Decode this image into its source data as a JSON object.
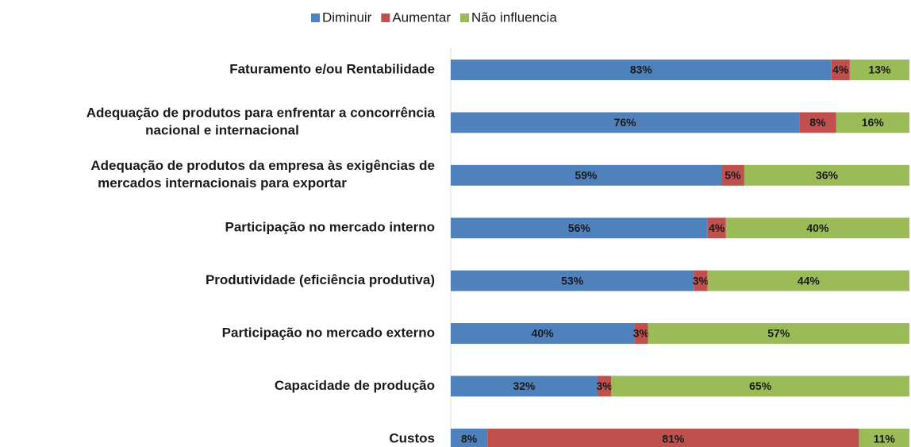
{
  "chart_data": {
    "type": "stacked-bar-horizontal",
    "categories": [
      "Faturamento e/ou Rentabilidade",
      "Adequação de produtos para enfrentar a concorrência\nnacional e internacional",
      "Adequação de produtos da empresa às exigências de\nmercados internacionais para exportar",
      "Participação no mercado interno",
      "Produtividade (eficiência produtiva)",
      "Participação no mercado externo",
      "Capacidade de produção",
      "Custos"
    ],
    "series": [
      {
        "name": "Diminuir",
        "color": "#4f81bd",
        "values": [
          83,
          76,
          59,
          56,
          53,
          40,
          32,
          8
        ],
        "value_labels": [
          "83%",
          "76%",
          "59%",
          "56%",
          "53%",
          "40%",
          "32%",
          "8%"
        ]
      },
      {
        "name": "Aumentar",
        "color": "#c0504d",
        "values": [
          4,
          8,
          5,
          4,
          3,
          3,
          3,
          81
        ],
        "value_labels": [
          "4%",
          "8%",
          "5%",
          "4%",
          "3%",
          "3%",
          "3%",
          "81%"
        ]
      },
      {
        "name": "Não influencia",
        "color": "#9bbb59",
        "values": [
          13,
          16,
          36,
          40,
          44,
          57,
          65,
          11
        ],
        "value_labels": [
          "13%",
          "16%",
          "36%",
          "40%",
          "44%",
          "57%",
          "65%",
          "11%"
        ]
      }
    ],
    "xlim": [
      0,
      100
    ],
    "legend": "top"
  }
}
